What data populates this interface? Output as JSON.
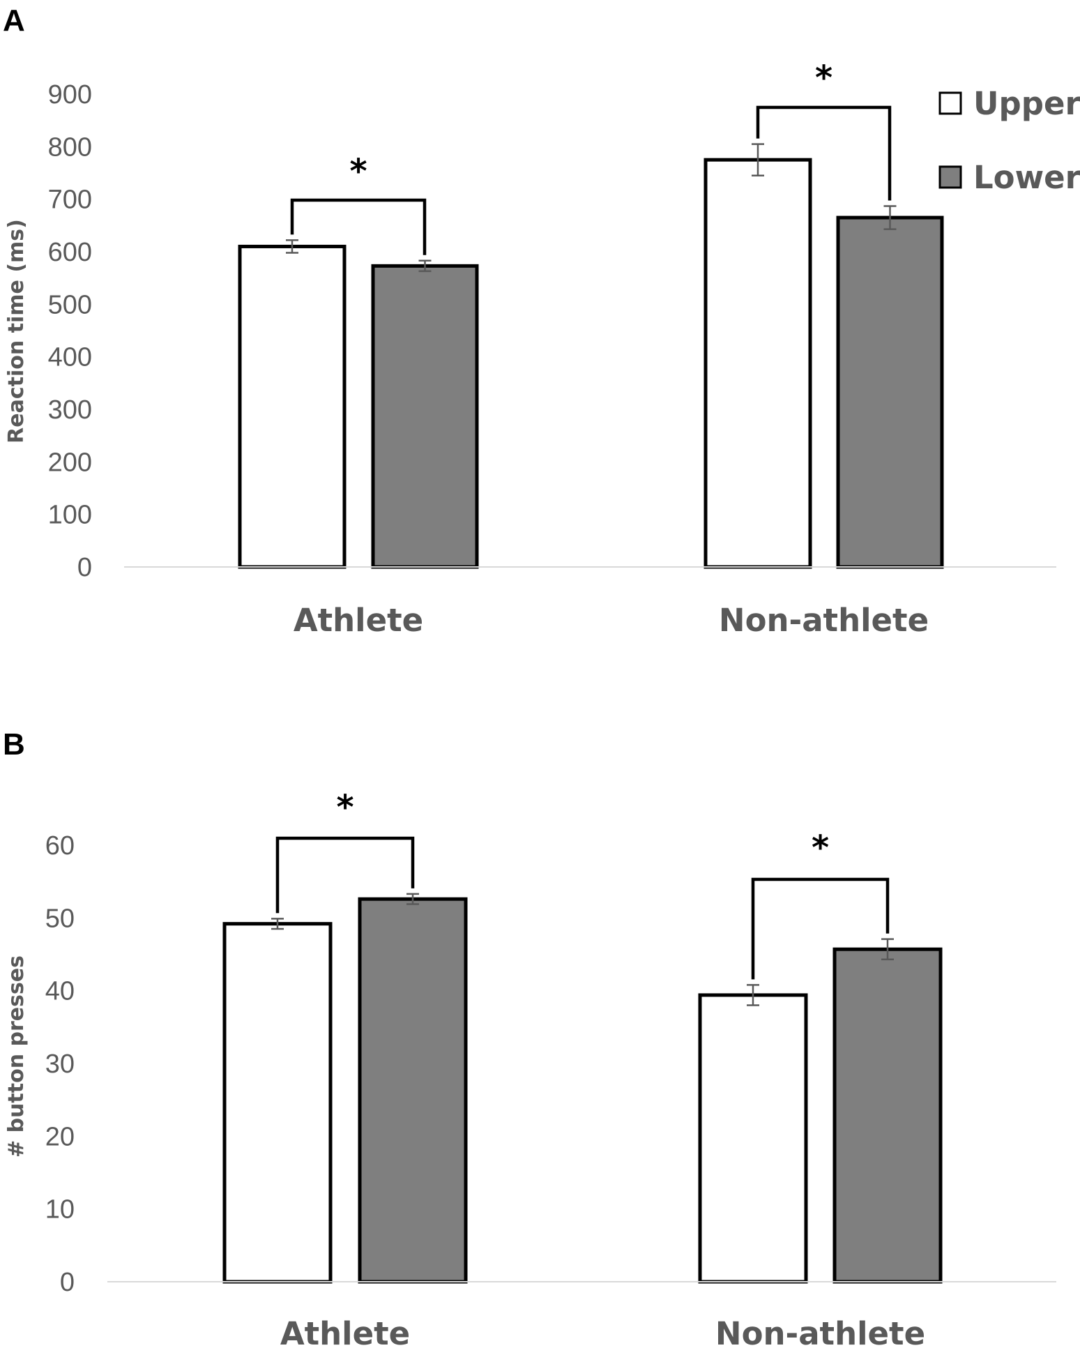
{
  "chart_data": [
    {
      "panel_label": "A",
      "type": "bar",
      "categories": [
        "Athlete",
        "Non-athlete"
      ],
      "ylabel": "Reaction time (ms)",
      "ylim": [
        0,
        900
      ],
      "yticks": [
        "0",
        "100",
        "200",
        "300",
        "400",
        "500",
        "600",
        "700",
        "800",
        "900"
      ],
      "series": [
        {
          "name": "Upper",
          "color": "#ffffff",
          "values": [
            610,
            775
          ],
          "errors": [
            12,
            30
          ]
        },
        {
          "name": "Lower",
          "color": "#7f7f7f",
          "values": [
            573,
            665
          ],
          "errors": [
            10,
            22
          ]
        }
      ],
      "significance": [
        "*",
        "*"
      ],
      "legend": {
        "position": "top-right",
        "items": [
          "Upper",
          "Lower"
        ]
      }
    },
    {
      "panel_label": "B",
      "type": "bar",
      "categories": [
        "Athlete",
        "Non-athlete"
      ],
      "ylabel": "# button presses",
      "ylim": [
        0,
        60
      ],
      "yticks": [
        "0",
        "10",
        "20",
        "30",
        "40",
        "50",
        "60"
      ],
      "series": [
        {
          "name": "Upper",
          "color": "#ffffff",
          "values": [
            49.2,
            39.4
          ],
          "errors": [
            0.7,
            1.4
          ]
        },
        {
          "name": "Lower",
          "color": "#7f7f7f",
          "values": [
            52.6,
            45.7
          ],
          "errors": [
            0.7,
            1.4
          ]
        }
      ],
      "significance": [
        "*",
        "*"
      ]
    }
  ],
  "colors": {
    "axis_text": "#595959",
    "axis_line": "#d9d9d9",
    "bar_stroke": "#000000",
    "error_bar": "#595959"
  }
}
